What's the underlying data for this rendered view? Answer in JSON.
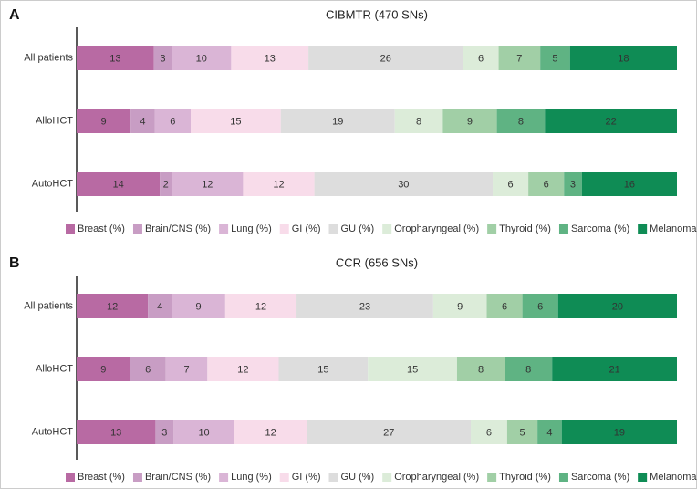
{
  "chart_data": [
    {
      "type": "bar",
      "orientation": "horizontal",
      "stacked": true,
      "panel_label": "A",
      "title": "CIBMTR (470 SNs)",
      "categories": [
        "All patients",
        "AlloHCT",
        "AutoHCT"
      ],
      "series": [
        {
          "name": "Breast (%)",
          "color": "#b86aa3",
          "values": [
            13,
            9,
            14
          ]
        },
        {
          "name": "Brain/CNS (%)",
          "color": "#c89dc4",
          "values": [
            3,
            4,
            2
          ]
        },
        {
          "name": "Lung (%)",
          "color": "#dab5d6",
          "values": [
            10,
            6,
            12
          ]
        },
        {
          "name": "GI (%)",
          "color": "#f8dcea",
          "values": [
            13,
            15,
            12
          ]
        },
        {
          "name": "GU (%)",
          "color": "#dddddd",
          "values": [
            26,
            19,
            30
          ]
        },
        {
          "name": "Oropharyngeal (%)",
          "color": "#dcecd9",
          "values": [
            6,
            8,
            6
          ]
        },
        {
          "name": "Thyroid (%)",
          "color": "#a1cfa6",
          "values": [
            7,
            9,
            6
          ]
        },
        {
          "name": "Sarcoma (%)",
          "color": "#5fb383",
          "values": [
            5,
            8,
            3
          ]
        },
        {
          "name": "Melanoma (%)",
          "color": "#0f8c55",
          "values": [
            18,
            22,
            16
          ]
        }
      ]
    },
    {
      "type": "bar",
      "orientation": "horizontal",
      "stacked": true,
      "panel_label": "B",
      "title": "CCR (656 SNs)",
      "categories": [
        "All patients",
        "AlloHCT",
        "AutoHCT"
      ],
      "series": [
        {
          "name": "Breast (%)",
          "color": "#b86aa3",
          "values": [
            12,
            9,
            13
          ]
        },
        {
          "name": "Brain/CNS (%)",
          "color": "#c89dc4",
          "values": [
            4,
            6,
            3
          ]
        },
        {
          "name": "Lung (%)",
          "color": "#dab5d6",
          "values": [
            9,
            7,
            10
          ]
        },
        {
          "name": "GI (%)",
          "color": "#f8dcea",
          "values": [
            12,
            12,
            12
          ]
        },
        {
          "name": "GU (%)",
          "color": "#dddddd",
          "values": [
            23,
            15,
            27
          ]
        },
        {
          "name": "Oropharyngeal (%)",
          "color": "#dcecd9",
          "values": [
            9,
            15,
            6
          ]
        },
        {
          "name": "Thyroid (%)",
          "color": "#a1cfa6",
          "values": [
            6,
            8,
            5
          ]
        },
        {
          "name": "Sarcoma (%)",
          "color": "#5fb383",
          "values": [
            6,
            8,
            4
          ]
        },
        {
          "name": "Melanoma (%)",
          "color": "#0f8c55",
          "values": [
            20,
            21,
            19
          ]
        }
      ]
    }
  ]
}
